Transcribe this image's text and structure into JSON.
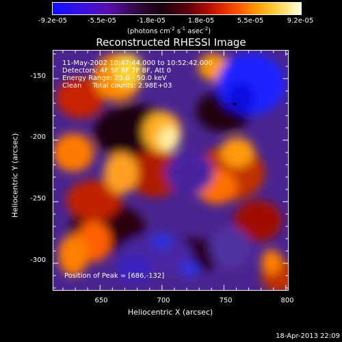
{
  "colorbar": {
    "tick_labels": [
      "-9.2e-05",
      "-5.5e-05",
      "-1.8e-05",
      "1.8e-05",
      "5.5e-05",
      "9.2e-05"
    ],
    "unit_label": "(photons cm",
    "unit_sup1": "-2",
    "unit_mid": " s",
    "unit_sup2": "-1",
    "unit_end": " asec",
    "unit_sup3": "-2",
    "unit_close": ")"
  },
  "chart_data": {
    "type": "heatmap",
    "title": "Reconstructed RHESSI Image",
    "xlabel": "Heliocentric X (arcsec)",
    "ylabel": "Heliocentric Y (arcsec)",
    "xlim": [
      612,
      802
    ],
    "ylim": [
      -322,
      -127
    ],
    "x_ticks": [
      650,
      700,
      750,
      800
    ],
    "y_ticks": [
      -150,
      -200,
      -250,
      -300
    ],
    "value_range": [
      -9.2e-05,
      9.2e-05
    ],
    "peak_position": [
      686,
      -132
    ],
    "annotations": [
      "11-May-2002 10:47:44.000 to 10:52:42.000",
      "Detectors: 4F 5F 6F 7F 8F, Att 0",
      "Energy Range: 25.0 - 50.0 keV",
      "Clean     Total counts: 2.98E+03"
    ],
    "peak_label": "Position of Peak = [686,-132]",
    "marker": [
      754,
      -173
    ]
  },
  "footer": {
    "date": "18-Apr-2013 22:09"
  }
}
